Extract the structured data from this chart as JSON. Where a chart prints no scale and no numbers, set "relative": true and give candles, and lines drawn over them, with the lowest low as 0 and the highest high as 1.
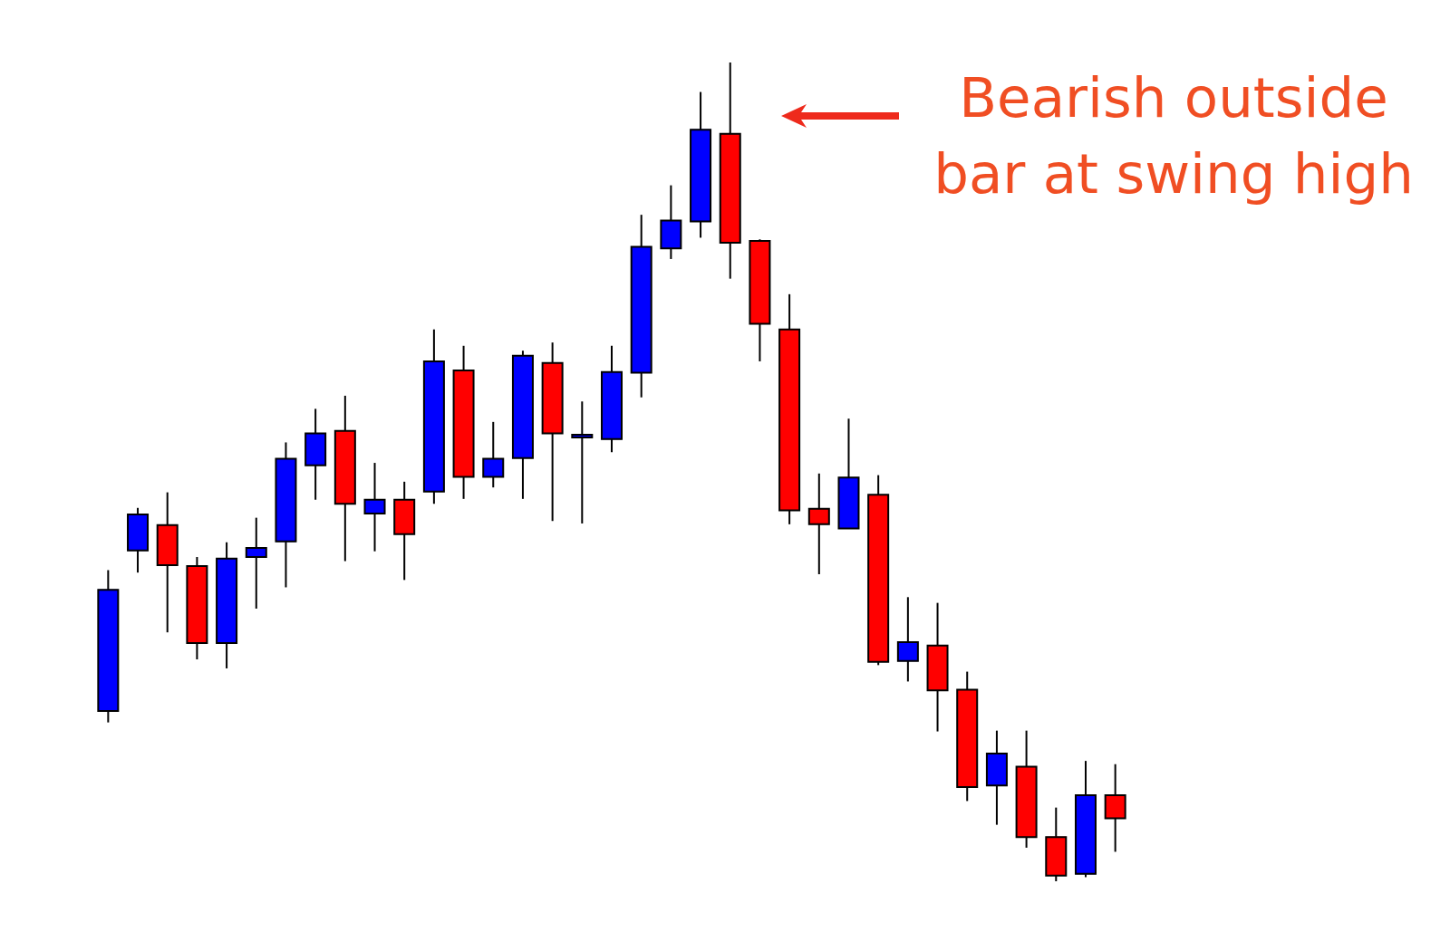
{
  "chart_data": {
    "type": "candlestick",
    "relative": true,
    "categories": [
      null,
      null,
      null,
      null,
      null,
      null,
      null,
      null,
      null,
      null,
      null,
      null,
      null,
      null,
      null,
      null,
      null,
      null,
      null,
      null,
      null,
      null,
      null,
      null,
      null,
      null,
      null,
      null,
      null,
      null,
      null,
      null,
      null,
      null,
      null
    ],
    "ohlc": [
      [
        0.208,
        0.38,
        0.194,
        0.356
      ],
      [
        0.404,
        0.456,
        0.377,
        0.448
      ],
      [
        0.435,
        0.475,
        0.304,
        0.386
      ],
      [
        0.385,
        0.396,
        0.271,
        0.291
      ],
      [
        0.291,
        0.414,
        0.26,
        0.394
      ],
      [
        0.396,
        0.444,
        0.333,
        0.407
      ],
      [
        0.415,
        0.536,
        0.359,
        0.516
      ],
      [
        0.508,
        0.577,
        0.466,
        0.547
      ],
      [
        0.55,
        0.593,
        0.391,
        0.461
      ],
      [
        0.449,
        0.511,
        0.403,
        0.466
      ],
      [
        0.466,
        0.488,
        0.368,
        0.424
      ],
      [
        0.476,
        0.674,
        0.461,
        0.635
      ],
      [
        0.624,
        0.654,
        0.467,
        0.494
      ],
      [
        0.494,
        0.561,
        0.481,
        0.516
      ],
      [
        0.517,
        0.648,
        0.467,
        0.642
      ],
      [
        0.633,
        0.658,
        0.44,
        0.547
      ],
      [
        0.542,
        0.586,
        0.437,
        0.542
      ],
      [
        0.54,
        0.654,
        0.524,
        0.622
      ],
      [
        0.621,
        0.814,
        0.591,
        0.775
      ],
      [
        0.773,
        0.85,
        0.76,
        0.807
      ],
      [
        0.806,
        0.964,
        0.786,
        0.918
      ],
      [
        0.913,
        1,
        0.736,
        0.78
      ],
      [
        0.782,
        0.784,
        0.635,
        0.681
      ],
      [
        0.674,
        0.717,
        0.436,
        0.453
      ],
      [
        0.455,
        0.498,
        0.375,
        0.436
      ],
      [
        0.431,
        0.565,
        0.431,
        0.493
      ],
      [
        0.472,
        0.496,
        0.264,
        0.268
      ],
      [
        0.269,
        0.347,
        0.244,
        0.292
      ],
      [
        0.288,
        0.34,
        0.183,
        0.233
      ],
      [
        0.234,
        0.256,
        0.098,
        0.115
      ],
      [
        0.117,
        0.184,
        0.069,
        0.156
      ],
      [
        0.14,
        0.184,
        0.041,
        0.054
      ],
      [
        0.054,
        0.09,
        0,
        0.007
      ],
      [
        0.009,
        0.147,
        0.005,
        0.105
      ],
      [
        0.105,
        0.143,
        0.036,
        0.077
      ]
    ],
    "colors": [
      "#0000ff",
      "#0000ff",
      "#ff0000",
      "#ff0000",
      "#0000ff",
      "#0000ff",
      "#0000ff",
      "#0000ff",
      "#ff0000",
      "#0000ff",
      "#ff0000",
      "#0000ff",
      "#ff0000",
      "#0000ff",
      "#0000ff",
      "#ff0000",
      "#0000ff",
      "#0000ff",
      "#0000ff",
      "#0000ff",
      "#0000ff",
      "#ff0000",
      "#ff0000",
      "#ff0000",
      "#ff0000",
      "#0000ff",
      "#ff0000",
      "#0000ff",
      "#ff0000",
      "#ff0000",
      "#0000ff",
      "#ff0000",
      "#ff0000",
      "#0000ff",
      "#ff0000"
    ],
    "annotations": [
      "Bearish outside bar at swing high"
    ]
  }
}
